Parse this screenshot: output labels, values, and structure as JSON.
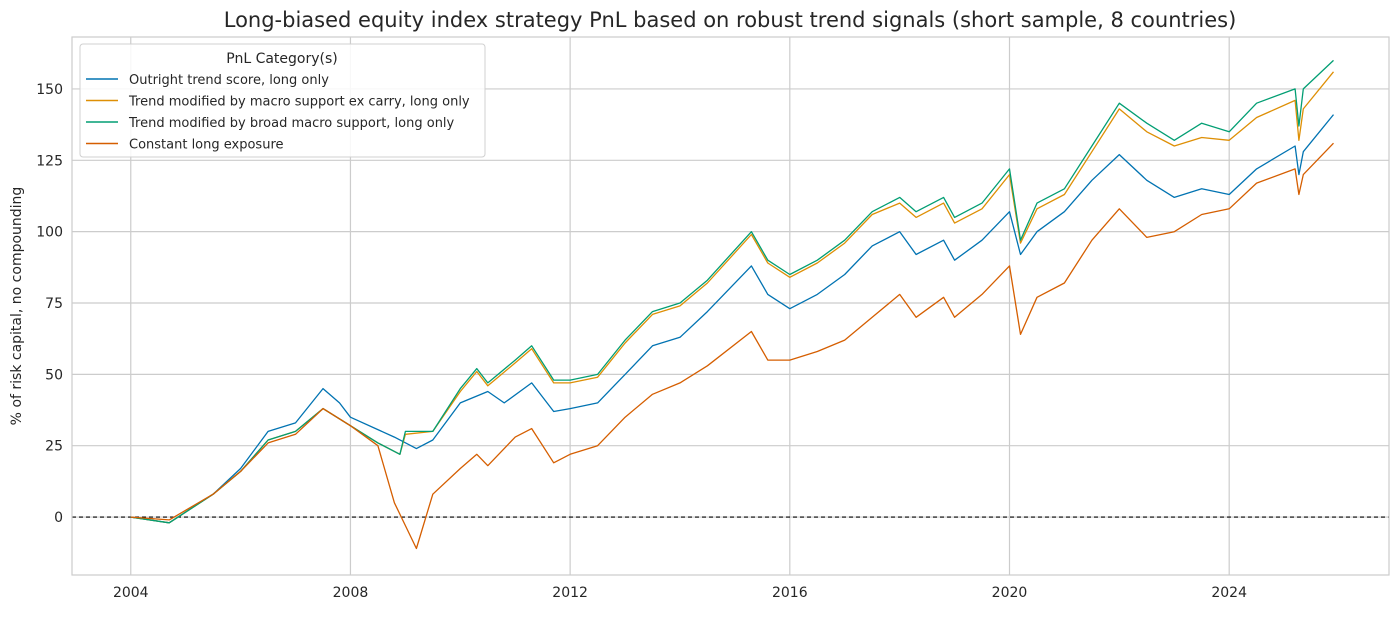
{
  "chart_data": {
    "type": "line",
    "title": "Long-biased equity index strategy PnL based on robust trend signals (short sample, 8 countries)",
    "xlabel": "",
    "ylabel": "% of risk capital, no compounding",
    "xlim": [
      2002.93,
      2026.91
    ],
    "ylim": [
      -20.3,
      168.2
    ],
    "x_ticks": [
      2004,
      2008,
      2012,
      2016,
      2020,
      2024
    ],
    "y_ticks": [
      0,
      25,
      50,
      75,
      100,
      125,
      150
    ],
    "grid": true,
    "reference_line": {
      "y": 0,
      "style": "dashed",
      "color": "#000000"
    },
    "legend": {
      "title": "PnL Category(s)",
      "placement": "top-left"
    },
    "series": [
      {
        "name": "Outright trend score, long only",
        "color": "#0173b2",
        "x": [
          2004.0,
          2004.7,
          2005.5,
          2006.0,
          2006.5,
          2007.0,
          2007.5,
          2007.8,
          2008.0,
          2008.8,
          2009.2,
          2009.5,
          2010.0,
          2010.5,
          2010.8,
          2011.3,
          2011.7,
          2012.0,
          2012.5,
          2013.0,
          2013.5,
          2014.0,
          2014.5,
          2015.3,
          2015.6,
          2016.0,
          2016.5,
          2017.0,
          2017.5,
          2018.0,
          2018.3,
          2018.8,
          2019.0,
          2019.5,
          2020.0,
          2020.2,
          2020.5,
          2021.0,
          2021.5,
          2022.0,
          2022.5,
          2023.0,
          2023.5,
          2024.0,
          2024.5,
          2025.2,
          2025.27,
          2025.35,
          2025.9
        ],
        "y": [
          0,
          -2,
          8,
          17,
          30,
          33,
          45,
          40,
          35,
          28,
          24,
          27,
          40,
          44,
          40,
          47,
          37,
          38,
          40,
          50,
          60,
          63,
          72,
          88,
          78,
          73,
          78,
          85,
          95,
          100,
          92,
          97,
          90,
          97,
          107,
          92,
          100,
          107,
          118,
          127,
          118,
          112,
          115,
          113,
          122,
          130,
          120,
          128,
          141
        ]
      },
      {
        "name": "Trend modified by macro support ex carry, long only",
        "color": "#de8f05",
        "x": [
          2004.0,
          2004.7,
          2005.5,
          2006.0,
          2006.5,
          2007.0,
          2007.5,
          2008.0,
          2008.5,
          2008.9,
          2009.0,
          2009.5,
          2010.0,
          2010.3,
          2010.5,
          2011.0,
          2011.3,
          2011.7,
          2012.0,
          2012.5,
          2013.0,
          2013.5,
          2014.0,
          2014.5,
          2015.3,
          2015.6,
          2016.0,
          2016.5,
          2017.0,
          2017.5,
          2018.0,
          2018.3,
          2018.8,
          2019.0,
          2019.5,
          2020.0,
          2020.2,
          2020.5,
          2021.0,
          2021.5,
          2022.0,
          2022.5,
          2023.0,
          2023.5,
          2024.0,
          2024.5,
          2025.2,
          2025.27,
          2025.35,
          2025.9
        ],
        "y": [
          0,
          -2,
          8,
          16,
          27,
          30,
          38,
          32,
          26,
          22,
          29,
          30,
          44,
          51,
          46,
          54,
          59,
          47,
          47,
          49,
          61,
          71,
          74,
          82,
          99,
          89,
          84,
          89,
          96,
          106,
          110,
          105,
          110,
          103,
          108,
          120,
          96,
          108,
          113,
          128,
          143,
          135,
          130,
          133,
          132,
          140,
          146,
          132,
          143,
          156
        ]
      },
      {
        "name": "Trend modified by broad macro support, long only",
        "color": "#029e73",
        "x": [
          2004.0,
          2004.7,
          2005.5,
          2006.0,
          2006.5,
          2007.0,
          2007.5,
          2008.0,
          2008.5,
          2008.9,
          2009.0,
          2009.5,
          2010.0,
          2010.3,
          2010.5,
          2011.0,
          2011.3,
          2011.7,
          2012.0,
          2012.5,
          2013.0,
          2013.5,
          2014.0,
          2014.5,
          2015.3,
          2015.6,
          2016.0,
          2016.5,
          2017.0,
          2017.5,
          2018.0,
          2018.3,
          2018.8,
          2019.0,
          2019.5,
          2020.0,
          2020.2,
          2020.5,
          2021.0,
          2021.5,
          2022.0,
          2022.5,
          2023.0,
          2023.5,
          2024.0,
          2024.5,
          2025.2,
          2025.27,
          2025.35,
          2025.9
        ],
        "y": [
          0,
          -2,
          8,
          16,
          27,
          30,
          38,
          32,
          26,
          22,
          30,
          30,
          45,
          52,
          47,
          55,
          60,
          48,
          48,
          50,
          62,
          72,
          75,
          83,
          100,
          90,
          85,
          90,
          97,
          107,
          112,
          107,
          112,
          105,
          110,
          122,
          97,
          110,
          115,
          130,
          145,
          138,
          132,
          138,
          135,
          145,
          150,
          137,
          150,
          160
        ]
      },
      {
        "name": "Constant long exposure",
        "color": "#d55e00",
        "x": [
          2004.0,
          2004.7,
          2005.5,
          2006.0,
          2006.5,
          2007.0,
          2007.5,
          2008.0,
          2008.5,
          2008.8,
          2009.0,
          2009.2,
          2009.5,
          2010.0,
          2010.3,
          2010.5,
          2011.0,
          2011.3,
          2011.7,
          2012.0,
          2012.5,
          2013.0,
          2013.5,
          2014.0,
          2014.5,
          2015.3,
          2015.6,
          2016.0,
          2016.5,
          2017.0,
          2017.5,
          2018.0,
          2018.3,
          2018.8,
          2019.0,
          2019.5,
          2020.0,
          2020.2,
          2020.5,
          2021.0,
          2021.5,
          2022.0,
          2022.5,
          2023.0,
          2023.5,
          2024.0,
          2024.5,
          2025.2,
          2025.27,
          2025.35,
          2025.9
        ],
        "y": [
          0,
          -1,
          8,
          16,
          26,
          29,
          38,
          32,
          25,
          5,
          -3,
          -11,
          8,
          17,
          22,
          18,
          28,
          31,
          19,
          22,
          25,
          35,
          43,
          47,
          53,
          65,
          55,
          55,
          58,
          62,
          70,
          78,
          70,
          77,
          70,
          78,
          88,
          64,
          77,
          82,
          97,
          108,
          98,
          100,
          106,
          108,
          117,
          122,
          113,
          120,
          131
        ]
      }
    ]
  }
}
